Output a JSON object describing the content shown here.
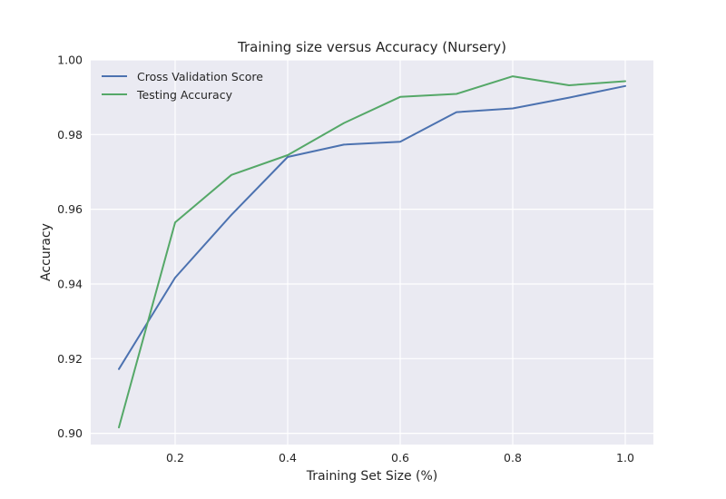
{
  "chart_data": {
    "type": "line",
    "title": "Training size versus Accuracy (Nursery)",
    "xlabel": "Training Set Size (%)",
    "ylabel": "Accuracy",
    "xlim": [
      0.05,
      1.05
    ],
    "ylim": [
      0.897,
      1.0
    ],
    "xticks": [
      0.2,
      0.4,
      0.6,
      0.8,
      1.0
    ],
    "xtick_labels": [
      "0.2",
      "0.4",
      "0.6",
      "0.8",
      "1.0"
    ],
    "yticks": [
      0.9,
      0.92,
      0.94,
      0.96,
      0.98,
      1.0
    ],
    "ytick_labels": [
      "0.90",
      "0.92",
      "0.94",
      "0.96",
      "0.98",
      "1.00"
    ],
    "grid": true,
    "legend_position": "top-left",
    "x": [
      0.1,
      0.2,
      0.3,
      0.4,
      0.5,
      0.6,
      0.7,
      0.8,
      0.9,
      1.0
    ],
    "series": [
      {
        "name": "Cross Validation Score",
        "color": "#4c72b0",
        "values": [
          0.9172,
          0.9417,
          0.9585,
          0.974,
          0.9773,
          0.9781,
          0.986,
          0.987,
          0.9899,
          0.993
        ]
      },
      {
        "name": "Testing Accuracy",
        "color": "#55a868",
        "values": [
          0.9016,
          0.9565,
          0.9692,
          0.9745,
          0.9831,
          0.9901,
          0.9909,
          0.9956,
          0.9932,
          0.9943
        ]
      }
    ]
  }
}
